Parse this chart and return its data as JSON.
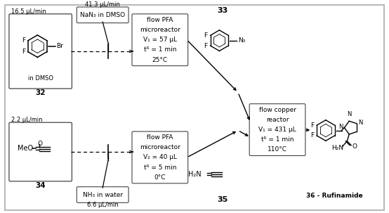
{
  "bg_color": "#ffffff",
  "border_color": "#888888",
  "box_edge_color": "#555555",
  "line_color": "#000000",
  "compounds": {
    "32": {
      "label": "32",
      "sublabel": "in DMSO",
      "flow": "16.5 μL/min"
    },
    "33": {
      "label": "33"
    },
    "34": {
      "label": "34",
      "flow": "2.2 μL/min"
    },
    "35": {
      "label": "35"
    },
    "36": {
      "label": "36 - Rufinamide"
    }
  },
  "reagents": {
    "nan3": {
      "label": "NaN₃ in DMSO",
      "flow": "41.3 μL/min"
    },
    "nh3": {
      "label": "NH₃ in water",
      "flow": "6.6 μL/min"
    }
  },
  "reactors": {
    "pfa1": {
      "lines": [
        "flow PFA",
        "microreactor",
        "V₁ = 57 μL",
        "tᴿ = 1 min",
        "25°C"
      ]
    },
    "pfa2": {
      "lines": [
        "flow PFA",
        "microreactor",
        "V₂ = 40 μL",
        "tᴿ = 5 min",
        "0°C"
      ]
    },
    "copper": {
      "lines": [
        "flow copper",
        "reactor",
        "V₁ = 431 μL",
        "tᴿ = 1 min",
        "110°C"
      ]
    }
  }
}
